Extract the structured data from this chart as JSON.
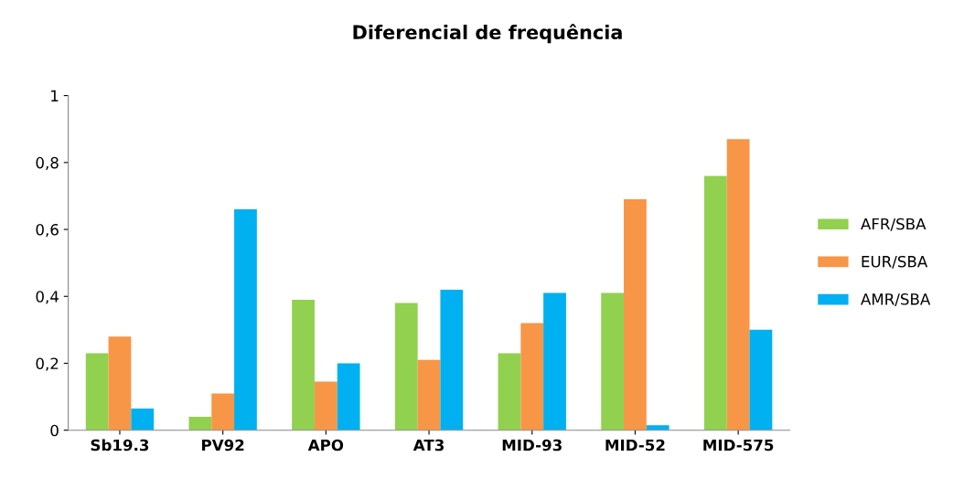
{
  "chart_data": {
    "type": "bar",
    "title": "Diferencial de frequência",
    "categories": [
      "Sb19.3",
      "PV92",
      "APO",
      "AT3",
      "MID-93",
      "MID-52",
      "MID-575"
    ],
    "series": [
      {
        "name": "AFR/SBA",
        "color": "#92d050",
        "values": [
          0.23,
          0.04,
          0.39,
          0.38,
          0.23,
          0.41,
          0.76
        ]
      },
      {
        "name": "EUR/SBA",
        "color": "#f79646",
        "values": [
          0.28,
          0.11,
          0.145,
          0.21,
          0.32,
          0.69,
          0.87
        ]
      },
      {
        "name": "AMR/SBA",
        "color": "#00b0f0",
        "values": [
          0.065,
          0.66,
          0.2,
          0.42,
          0.41,
          0.015,
          0.3
        ]
      }
    ],
    "ylim": [
      0,
      1
    ],
    "yticks": [
      {
        "value": 0,
        "label": "0"
      },
      {
        "value": 0.2,
        "label": "0,2"
      },
      {
        "value": 0.4,
        "label": "0,4"
      },
      {
        "value": 0.6,
        "label": "0,6"
      },
      {
        "value": 0.8,
        "label": "0,8"
      },
      {
        "value": 1,
        "label": "1"
      }
    ],
    "grid": false,
    "legend": "right"
  }
}
